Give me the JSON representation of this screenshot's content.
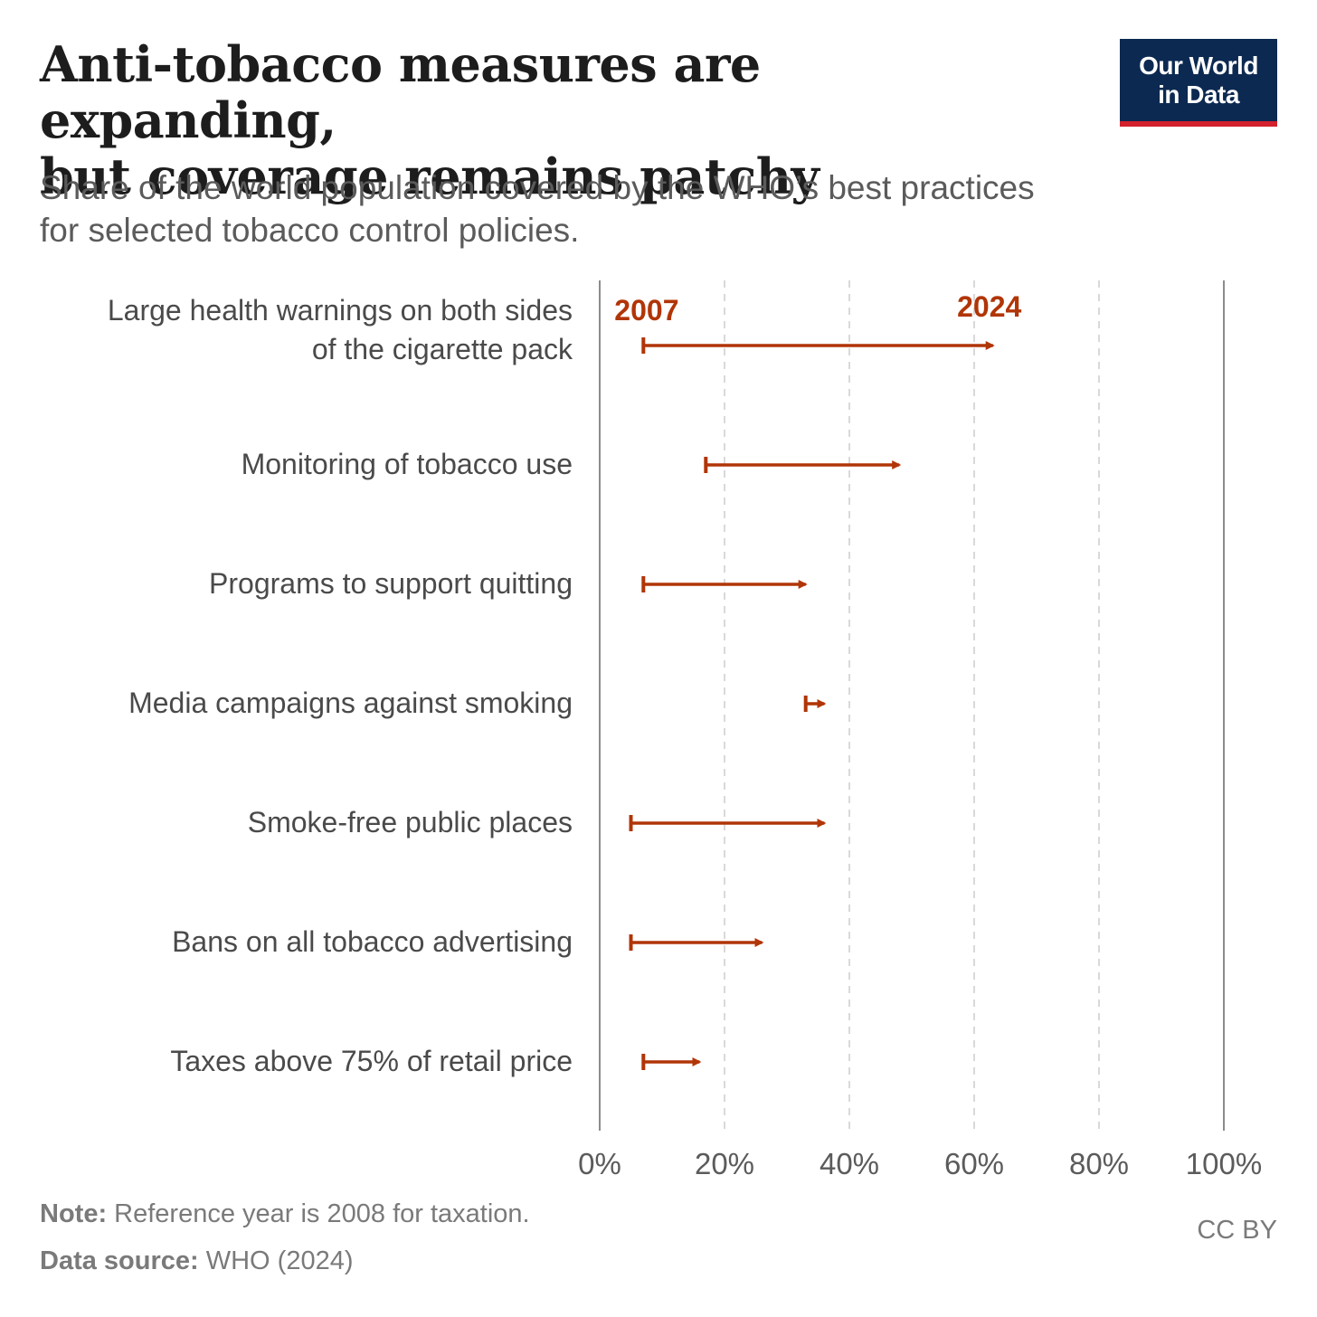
{
  "header": {
    "title_lines": [
      "Anti-tobacco measures are expanding,",
      "but coverage remains patchy"
    ],
    "subtitle_lines": [
      "Share of the world population covered by the WHO’s best practices",
      "for selected tobacco control policies."
    ],
    "logo_lines": [
      "Our World",
      "in Data"
    ]
  },
  "chart_data": {
    "type": "dumbbell",
    "start_label": "2007",
    "end_label": "2024",
    "xlim": [
      0,
      100
    ],
    "x_ticks": [
      0,
      20,
      40,
      60,
      80,
      100
    ],
    "x_tick_labels": [
      "0%",
      "20%",
      "40%",
      "60%",
      "80%",
      "100%"
    ],
    "gridlines": "dashed vertical",
    "series_color": "#b13507",
    "categories": [
      {
        "label_lines": [
          "Large health warnings on both sides",
          "of the cigarette pack"
        ],
        "start": 7,
        "end": 63
      },
      {
        "label_lines": [
          "Monitoring of tobacco use"
        ],
        "start": 17,
        "end": 48
      },
      {
        "label_lines": [
          "Programs to support quitting"
        ],
        "start": 7,
        "end": 33
      },
      {
        "label_lines": [
          "Media campaigns against smoking"
        ],
        "start": 33,
        "end": 36
      },
      {
        "label_lines": [
          "Smoke-free public places"
        ],
        "start": 5,
        "end": 36
      },
      {
        "label_lines": [
          "Bans on all tobacco advertising"
        ],
        "start": 5,
        "end": 26
      },
      {
        "label_lines": [
          "Taxes above 75% of retail price"
        ],
        "start": 7,
        "end": 16
      }
    ]
  },
  "footer": {
    "note_label": "Note:",
    "note_text": " Reference year is 2008 for taxation.",
    "source_label": "Data source:",
    "source_text": " WHO (2024)",
    "license": "CC BY"
  }
}
